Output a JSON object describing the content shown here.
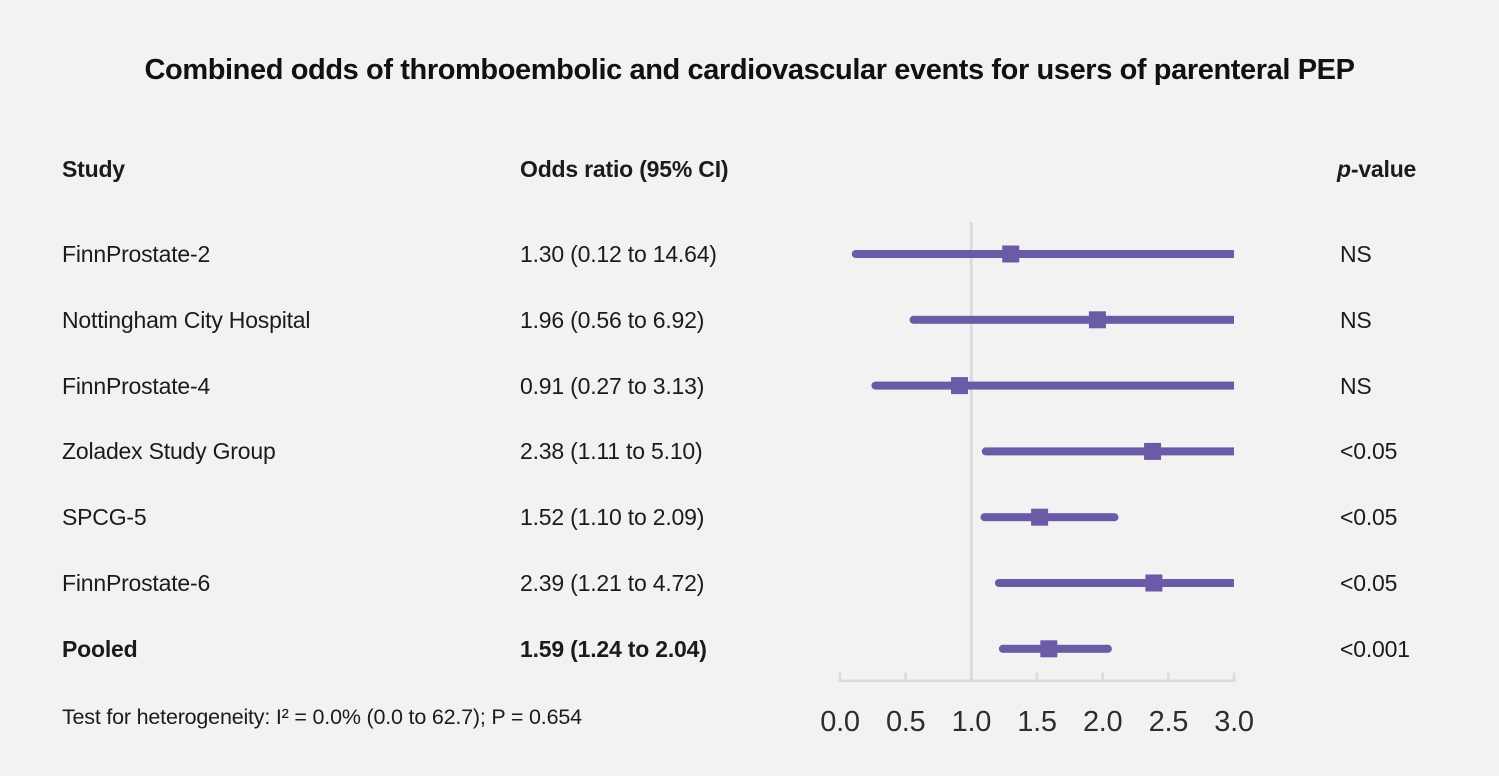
{
  "title": "Combined odds of thromboembolic and cardiovascular events for users of parenteral PEP",
  "headers": {
    "study": "Study",
    "odds_ratio": "Odds ratio (95% CI)",
    "p_value_prefix": "p",
    "p_value_suffix": "-value"
  },
  "footnote": "Test for heterogeneity: I² = 0.0% (0.0 to 62.7); P = 0.654",
  "chart_data": {
    "type": "forest",
    "title": "Combined odds of thromboembolic and cardiovascular events for users of parenteral PEP",
    "studies": [
      {
        "label": "FinnProstate-2",
        "estimate": 1.3,
        "lower": 0.12,
        "upper": 14.64,
        "or_text": "1.30 (0.12 to 14.64)",
        "p_value": "NS",
        "bold": false
      },
      {
        "label": "Nottingham City Hospital",
        "estimate": 1.96,
        "lower": 0.56,
        "upper": 6.92,
        "or_text": "1.96 (0.56 to 6.92)",
        "p_value": "NS",
        "bold": false
      },
      {
        "label": "FinnProstate-4",
        "estimate": 0.91,
        "lower": 0.27,
        "upper": 3.13,
        "or_text": "0.91 (0.27 to 3.13)",
        "p_value": "NS",
        "bold": false
      },
      {
        "label": "Zoladex Study Group",
        "estimate": 2.38,
        "lower": 1.11,
        "upper": 5.1,
        "or_text": "2.38 (1.11 to 5.10)",
        "p_value": "<0.05",
        "bold": false
      },
      {
        "label": "SPCG-5",
        "estimate": 1.52,
        "lower": 1.1,
        "upper": 2.09,
        "or_text": "1.52 (1.10 to 2.09)",
        "p_value": "<0.05",
        "bold": false
      },
      {
        "label": "FinnProstate-6",
        "estimate": 2.39,
        "lower": 1.21,
        "upper": 4.72,
        "or_text": "2.39 (1.21 to 4.72)",
        "p_value": "<0.05",
        "bold": false
      },
      {
        "label": "Pooled",
        "estimate": 1.59,
        "lower": 1.24,
        "upper": 2.04,
        "or_text": "1.59 (1.24 to 2.04)",
        "p_value": "<0.001",
        "bold": true
      }
    ],
    "x_axis": {
      "range": [
        0.0,
        3.0
      ],
      "ticks": [
        0.0,
        0.5,
        1.0,
        1.5,
        2.0,
        2.5,
        3.0
      ],
      "tick_labels": [
        "0.0",
        "0.5",
        "1.0",
        "1.5",
        "2.0",
        "2.5",
        "3.0"
      ],
      "reference_line": 1.0
    },
    "colors": {
      "line": "#6b5aa6",
      "marker": "#6b5aa6",
      "axis": "#d8dce2",
      "reference": "#d8dce2",
      "background": "#f2f2f2"
    }
  }
}
